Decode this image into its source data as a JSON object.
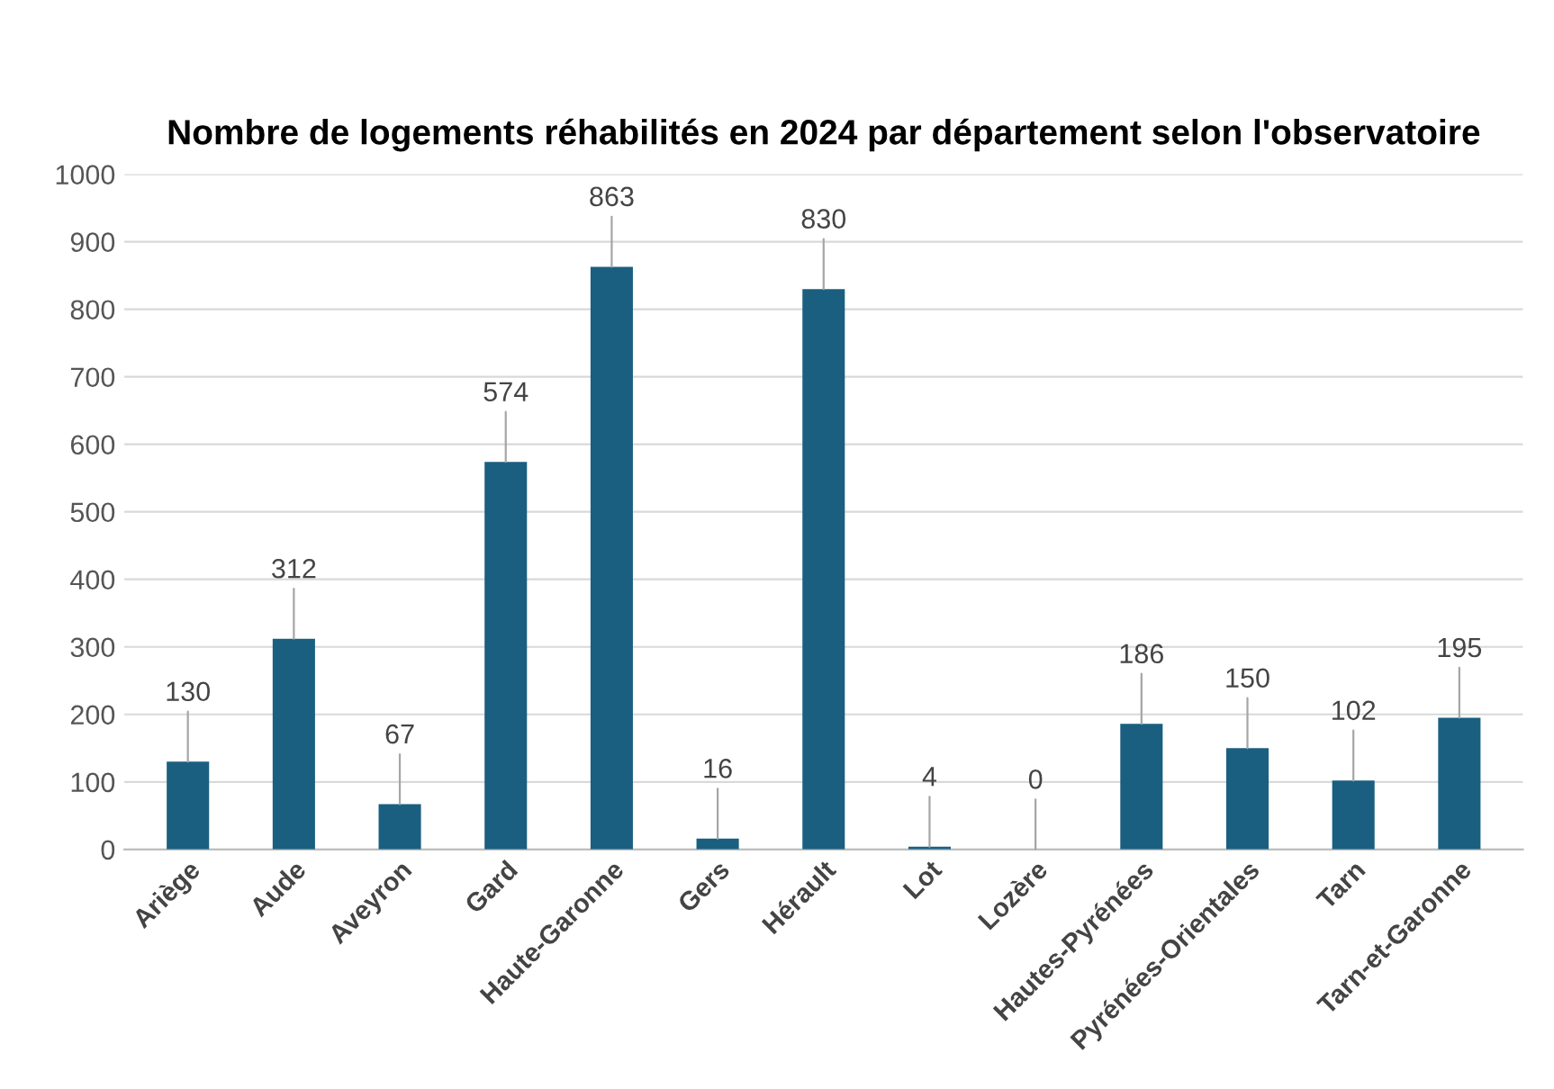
{
  "chart_data": {
    "type": "bar",
    "title": "Nombre de logements réhabilités en 2024 par département selon l'observatoire",
    "categories": [
      "Ariège",
      "Aude",
      "Aveyron",
      "Gard",
      "Haute-Garonne",
      "Gers",
      "Hérault",
      "Lot",
      "Lozère",
      "Hautes-Pyrénées",
      "Pyrénées-Orientales",
      "Tarn",
      "Tarn-et-Garonne"
    ],
    "values": [
      130,
      312,
      67,
      574,
      863,
      16,
      830,
      4,
      0,
      186,
      150,
      102,
      195
    ],
    "color": "#1a5f80",
    "ylim": [
      0,
      1000
    ],
    "yticks": [
      0,
      100,
      200,
      300,
      400,
      500,
      600,
      700,
      800,
      900,
      1000
    ],
    "grid": "y",
    "data_labels": true
  }
}
